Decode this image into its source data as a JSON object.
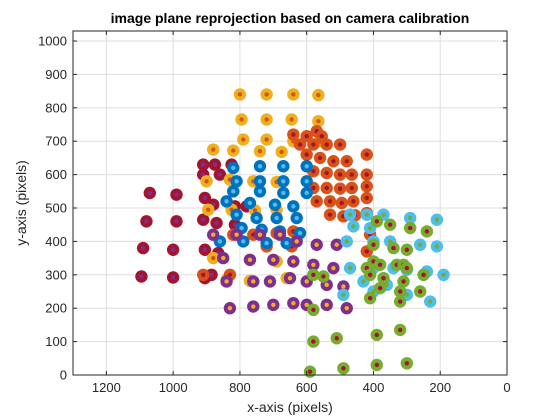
{
  "chart_data": {
    "type": "scatter",
    "title": "image plane reprojection based on camera calibration",
    "xlabel": "x-axis (pixels)",
    "ylabel": "y-axis (pixels)",
    "xlim": [
      0,
      1300
    ],
    "ylim": [
      0,
      1030
    ],
    "x_reversed": true,
    "grid": true,
    "legend": "none",
    "xticks": [
      0,
      200,
      400,
      600,
      800,
      1000,
      1200
    ],
    "yticks": [
      0,
      100,
      200,
      300,
      400,
      500,
      600,
      700,
      800,
      900,
      1000
    ],
    "series": [
      {
        "color": "#A2142F",
        "center_color": "#7E2F8E",
        "points": [
          [
            1070,
            545
          ],
          [
            990,
            540
          ],
          [
            905,
            530
          ],
          [
            880,
            510
          ],
          [
            815,
            505
          ],
          [
            780,
            505
          ],
          [
            1080,
            460
          ],
          [
            990,
            460
          ],
          [
            910,
            465
          ],
          [
            870,
            455
          ],
          [
            815,
            450
          ],
          [
            1090,
            380
          ],
          [
            1000,
            375
          ],
          [
            905,
            375
          ],
          [
            865,
            365
          ],
          [
            1095,
            295
          ],
          [
            1000,
            292
          ],
          [
            905,
            290
          ],
          [
            885,
            300
          ],
          [
            910,
            630
          ],
          [
            875,
            630
          ],
          [
            825,
            630
          ],
          [
            910,
            600
          ],
          [
            860,
            600
          ]
        ]
      },
      {
        "color": "#EDB120",
        "center_color": "#D95319",
        "points": [
          [
            800,
            840
          ],
          [
            720,
            840
          ],
          [
            640,
            840
          ],
          [
            565,
            838
          ],
          [
            795,
            765
          ],
          [
            720,
            765
          ],
          [
            645,
            765
          ],
          [
            565,
            760
          ],
          [
            790,
            705
          ],
          [
            720,
            705
          ],
          [
            640,
            700
          ],
          [
            560,
            700
          ],
          [
            880,
            675
          ],
          [
            820,
            672
          ],
          [
            740,
            670
          ],
          [
            675,
            668
          ],
          [
            900,
            580
          ],
          [
            830,
            585
          ],
          [
            760,
            580
          ],
          [
            690,
            578
          ],
          [
            895,
            495
          ],
          [
            825,
            495
          ],
          [
            755,
            493
          ],
          [
            690,
            495
          ],
          [
            880,
            350
          ],
          [
            770,
            345
          ],
          [
            690,
            340
          ],
          [
            660,
            290
          ],
          [
            840,
            285
          ],
          [
            770,
            282
          ]
        ]
      },
      {
        "color": "#D95319",
        "center_color": "#A2142F",
        "points": [
          [
            640,
            720
          ],
          [
            600,
            715
          ],
          [
            570,
            730
          ],
          [
            555,
            715
          ],
          [
            620,
            690
          ],
          [
            580,
            690
          ],
          [
            540,
            690
          ],
          [
            500,
            690
          ],
          [
            600,
            660
          ],
          [
            560,
            650
          ],
          [
            520,
            640
          ],
          [
            480,
            640
          ],
          [
            420,
            660
          ],
          [
            580,
            610
          ],
          [
            540,
            605
          ],
          [
            500,
            600
          ],
          [
            465,
            600
          ],
          [
            420,
            600
          ],
          [
            580,
            560
          ],
          [
            540,
            560
          ],
          [
            500,
            558
          ],
          [
            465,
            560
          ],
          [
            420,
            565
          ],
          [
            570,
            520
          ],
          [
            530,
            520
          ],
          [
            495,
            515
          ],
          [
            460,
            520
          ],
          [
            420,
            530
          ],
          [
            530,
            480
          ],
          [
            490,
            475
          ],
          [
            455,
            478
          ],
          [
            420,
            485
          ],
          [
            410,
            420
          ],
          [
            420,
            370
          ],
          [
            640,
            430
          ],
          [
            690,
            425
          ],
          [
            645,
            385
          ],
          [
            720,
            385
          ],
          [
            760,
            420
          ],
          [
            820,
            420
          ],
          [
            830,
            300
          ],
          [
            910,
            300
          ]
        ]
      },
      {
        "color": "#0072BD",
        "center_color": "#4DBEEE",
        "points": [
          [
            820,
            620
          ],
          [
            740,
            625
          ],
          [
            670,
            625
          ],
          [
            600,
            625
          ],
          [
            810,
            580
          ],
          [
            740,
            580
          ],
          [
            670,
            580
          ],
          [
            600,
            580
          ],
          [
            820,
            550
          ],
          [
            740,
            550
          ],
          [
            670,
            545
          ],
          [
            600,
            545
          ],
          [
            840,
            520
          ],
          [
            770,
            515
          ],
          [
            695,
            510
          ],
          [
            640,
            505
          ],
          [
            810,
            480
          ],
          [
            750,
            470
          ],
          [
            690,
            470
          ],
          [
            630,
            470
          ],
          [
            795,
            440
          ],
          [
            735,
            435
          ],
          [
            680,
            430
          ],
          [
            620,
            425
          ],
          [
            860,
            400
          ],
          [
            790,
            400
          ],
          [
            720,
            395
          ],
          [
            660,
            395
          ]
        ]
      },
      {
        "color": "#7E2F8E",
        "center_color": "#EDB120",
        "points": [
          [
            880,
            420
          ],
          [
            810,
            420
          ],
          [
            740,
            420
          ],
          [
            680,
            420
          ],
          [
            630,
            400
          ],
          [
            570,
            390
          ],
          [
            510,
            390
          ],
          [
            850,
            350
          ],
          [
            770,
            345
          ],
          [
            700,
            345
          ],
          [
            640,
            340
          ],
          [
            580,
            330
          ],
          [
            520,
            320
          ],
          [
            840,
            280
          ],
          [
            760,
            280
          ],
          [
            710,
            280
          ],
          [
            650,
            290
          ],
          [
            600,
            280
          ],
          [
            540,
            270
          ],
          [
            490,
            265
          ],
          [
            830,
            200
          ],
          [
            760,
            205
          ],
          [
            700,
            210
          ],
          [
            640,
            215
          ],
          [
            600,
            210
          ],
          [
            540,
            210
          ],
          [
            480,
            200
          ]
        ]
      },
      {
        "color": "#4DBEEE",
        "center_color": "#77AC30",
        "points": [
          [
            470,
            480
          ],
          [
            420,
            480
          ],
          [
            370,
            480
          ],
          [
            290,
            470
          ],
          [
            210,
            465
          ],
          [
            460,
            445
          ],
          [
            410,
            440
          ],
          [
            480,
            400
          ],
          [
            400,
            400
          ],
          [
            350,
            400
          ],
          [
            260,
            390
          ],
          [
            210,
            385
          ],
          [
            470,
            320
          ],
          [
            400,
            320
          ],
          [
            340,
            320
          ],
          [
            300,
            315
          ],
          [
            240,
            310
          ],
          [
            190,
            300
          ],
          [
            490,
            240
          ],
          [
            400,
            250
          ],
          [
            300,
            240
          ],
          [
            230,
            220
          ],
          [
            430,
            280
          ],
          [
            360,
            270
          ]
        ]
      },
      {
        "color": "#77AC30",
        "center_color": "#A2142F",
        "points": [
          [
            390,
            460
          ],
          [
            350,
            450
          ],
          [
            290,
            440
          ],
          [
            240,
            430
          ],
          [
            400,
            390
          ],
          [
            340,
            380
          ],
          [
            300,
            375
          ],
          [
            400,
            340
          ],
          [
            380,
            330
          ],
          [
            330,
            330
          ],
          [
            310,
            330
          ],
          [
            420,
            320
          ],
          [
            300,
            320
          ],
          [
            250,
            300
          ],
          [
            410,
            300
          ],
          [
            370,
            290
          ],
          [
            310,
            280
          ],
          [
            580,
            300
          ],
          [
            550,
            295
          ],
          [
            380,
            260
          ],
          [
            320,
            250
          ],
          [
            260,
            250
          ],
          [
            410,
            230
          ],
          [
            320,
            220
          ],
          [
            580,
            195
          ],
          [
            510,
            110
          ],
          [
            390,
            120
          ],
          [
            320,
            135
          ],
          [
            580,
            100
          ],
          [
            490,
            20
          ],
          [
            390,
            30
          ],
          [
            300,
            35
          ],
          [
            590,
            10
          ]
        ]
      }
    ]
  }
}
